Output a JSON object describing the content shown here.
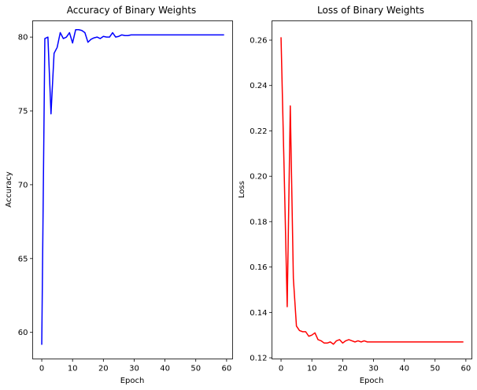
{
  "chart_data": [
    {
      "type": "line",
      "title": "Accuracy of Binary Weights",
      "xlabel": "Epoch",
      "ylabel": "Accuracy",
      "xlim": [
        -2.95,
        61.95
      ],
      "ylim": [
        58.2,
        81.1
      ],
      "xticks": [
        0,
        10,
        20,
        30,
        40,
        50,
        60
      ],
      "yticks": [
        60,
        65,
        70,
        75,
        80
      ],
      "grid": false,
      "series": [
        {
          "color": "#0000ff",
          "x": [
            0,
            1,
            2,
            3,
            4,
            5,
            6,
            7,
            8,
            9,
            10,
            11,
            12,
            13,
            14,
            15,
            16,
            17,
            18,
            19,
            20,
            21,
            22,
            23,
            24,
            25,
            26,
            27,
            28,
            29,
            30,
            31,
            32,
            33,
            34,
            35,
            36,
            37,
            38,
            39,
            40,
            41,
            42,
            43,
            44,
            45,
            46,
            47,
            48,
            49,
            50,
            51,
            52,
            53,
            54,
            55,
            56,
            57,
            58,
            59
          ],
          "y": [
            59.2,
            79.9,
            80.0,
            74.8,
            78.9,
            79.3,
            80.3,
            79.9,
            80.0,
            80.3,
            79.6,
            80.5,
            80.5,
            80.45,
            80.3,
            79.65,
            79.85,
            79.95,
            80.0,
            79.9,
            80.05,
            80.0,
            80.0,
            80.3,
            80.0,
            80.05,
            80.15,
            80.1,
            80.1,
            80.15,
            80.15,
            80.15,
            80.15,
            80.15,
            80.15,
            80.15,
            80.15,
            80.15,
            80.15,
            80.15,
            80.15,
            80.15,
            80.15,
            80.15,
            80.15,
            80.15,
            80.15,
            80.15,
            80.15,
            80.15,
            80.15,
            80.15,
            80.15,
            80.15,
            80.15,
            80.15,
            80.15,
            80.15,
            80.15,
            80.15
          ]
        }
      ]
    },
    {
      "type": "line",
      "title": "Loss of Binary Weights",
      "xlabel": "Epoch",
      "ylabel": "Loss",
      "xlim": [
        -2.95,
        61.95
      ],
      "ylim": [
        0.1195,
        0.2685
      ],
      "xticks": [
        0,
        10,
        20,
        30,
        40,
        50,
        60
      ],
      "yticks": [
        0.12,
        0.14,
        0.16,
        0.18,
        0.2,
        0.22,
        0.24,
        0.26
      ],
      "ytick_labels": [
        "0.12",
        "0.14",
        "0.16",
        "0.18",
        "0.20",
        "0.22",
        "0.24",
        "0.26"
      ],
      "grid": false,
      "series": [
        {
          "color": "#ff0000",
          "x": [
            0,
            1,
            2,
            3,
            4,
            5,
            6,
            7,
            8,
            9,
            10,
            11,
            12,
            13,
            14,
            15,
            16,
            17,
            18,
            19,
            20,
            21,
            22,
            23,
            24,
            25,
            26,
            27,
            28,
            29,
            30,
            31,
            32,
            33,
            34,
            35,
            36,
            37,
            38,
            39,
            40,
            41,
            42,
            43,
            44,
            45,
            46,
            47,
            48,
            49,
            50,
            51,
            52,
            53,
            54,
            55,
            56,
            57,
            58,
            59
          ],
          "y": [
            0.261,
            0.203,
            0.1425,
            0.231,
            0.155,
            0.134,
            0.132,
            0.1315,
            0.1315,
            0.1295,
            0.13,
            0.131,
            0.128,
            0.1275,
            0.1265,
            0.1265,
            0.127,
            0.126,
            0.1275,
            0.128,
            0.1265,
            0.1275,
            0.128,
            0.1275,
            0.127,
            0.1275,
            0.127,
            0.1275,
            0.127,
            0.127,
            0.127,
            0.127,
            0.127,
            0.127,
            0.127,
            0.127,
            0.127,
            0.127,
            0.127,
            0.127,
            0.127,
            0.127,
            0.127,
            0.127,
            0.127,
            0.127,
            0.127,
            0.127,
            0.127,
            0.127,
            0.127,
            0.127,
            0.127,
            0.127,
            0.127,
            0.127,
            0.127,
            0.127,
            0.127,
            0.127
          ]
        }
      ]
    }
  ]
}
